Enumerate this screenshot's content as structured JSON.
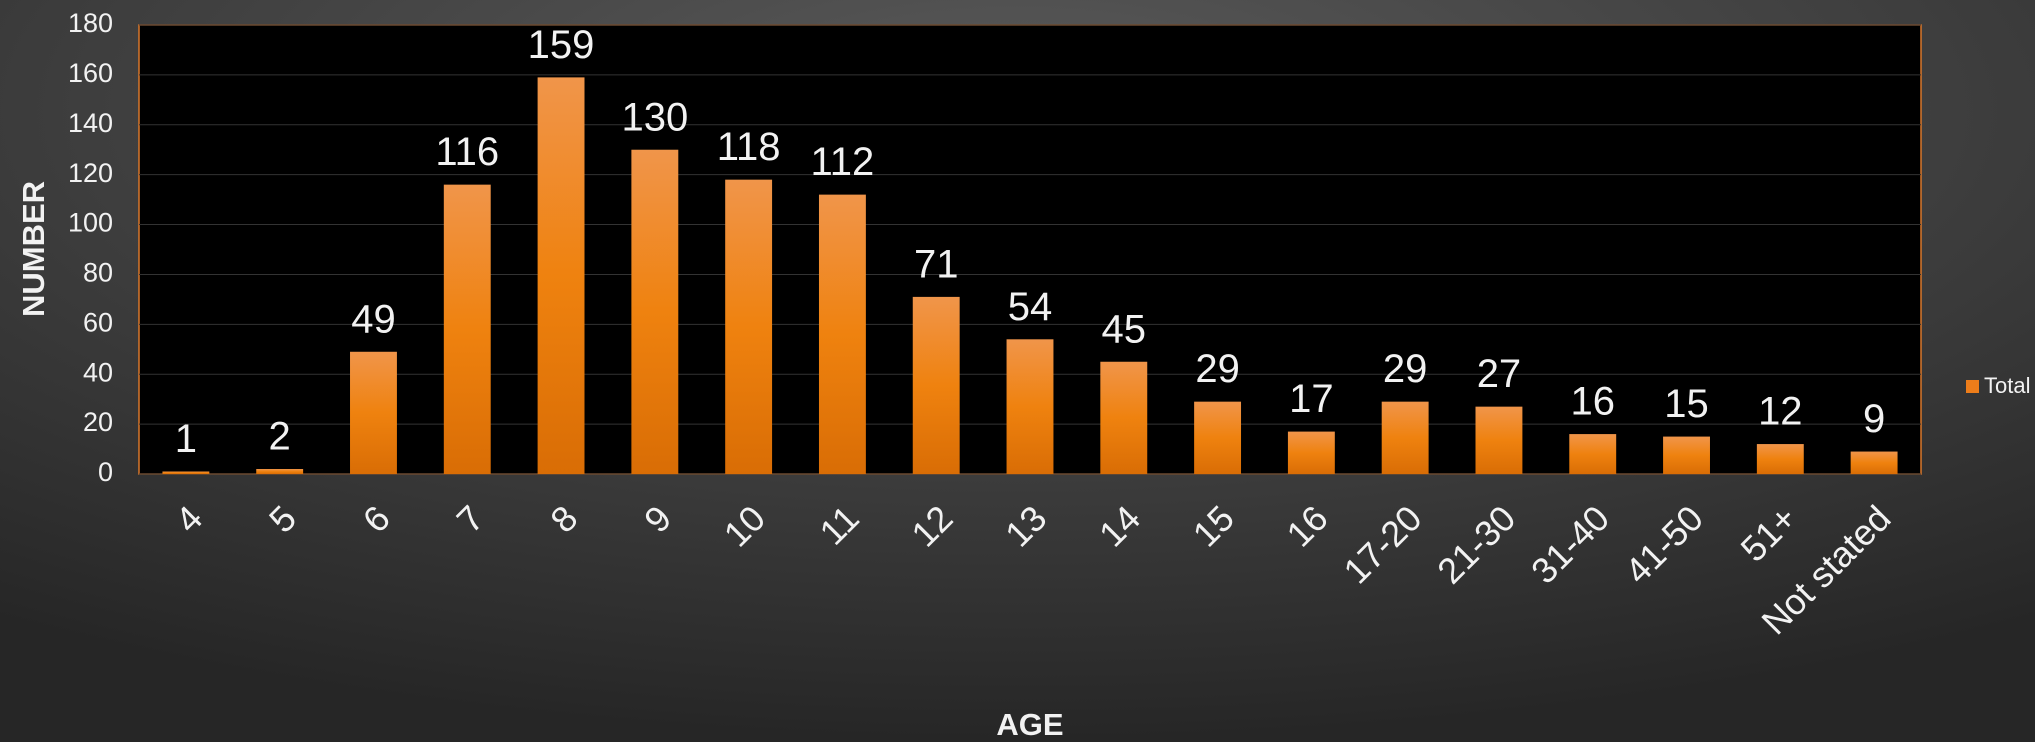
{
  "chart_data": {
    "type": "bar",
    "x_label": "AGE",
    "y_label": "NUMBER",
    "categories": [
      "4",
      "5",
      "6",
      "7",
      "8",
      "9",
      "10",
      "11",
      "12",
      "13",
      "14",
      "15",
      "16",
      "17-20",
      "21-30",
      "31-40",
      "41-50",
      "51+",
      "Not stated"
    ],
    "series": [
      {
        "name": "Total",
        "color": "#ed7d1a",
        "values": [
          1,
          2,
          49,
          116,
          159,
          130,
          118,
          112,
          71,
          54,
          45,
          29,
          17,
          29,
          27,
          16,
          15,
          12,
          9
        ]
      }
    ],
    "ylim": [
      0,
      180
    ],
    "yticks": [
      0,
      20,
      40,
      60,
      80,
      100,
      120,
      140,
      160,
      180
    ],
    "grid": true,
    "legend": "right"
  }
}
